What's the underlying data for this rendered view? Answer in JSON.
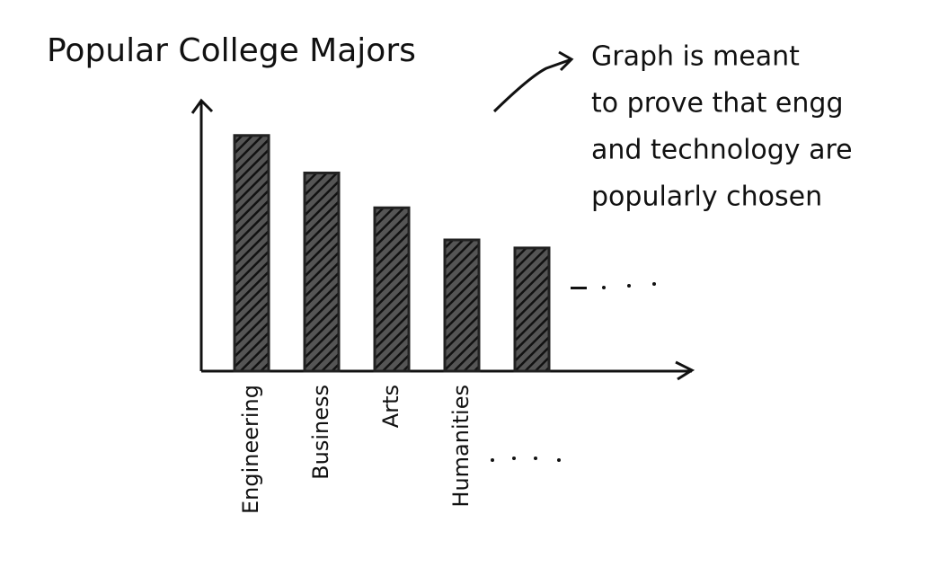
{
  "chart_data": {
    "type": "bar",
    "title": "Popular College Majors",
    "categories": [
      "Engineering",
      "Business",
      "Arts",
      "Humanities",
      null
    ],
    "values": [
      88,
      74,
      61,
      49,
      46
    ],
    "color": "#222222",
    "ylim": [
      0,
      100
    ],
    "annotation": [
      "Graph is meant",
      "to prove that engg",
      "and technology are",
      "popularly chosen"
    ]
  }
}
